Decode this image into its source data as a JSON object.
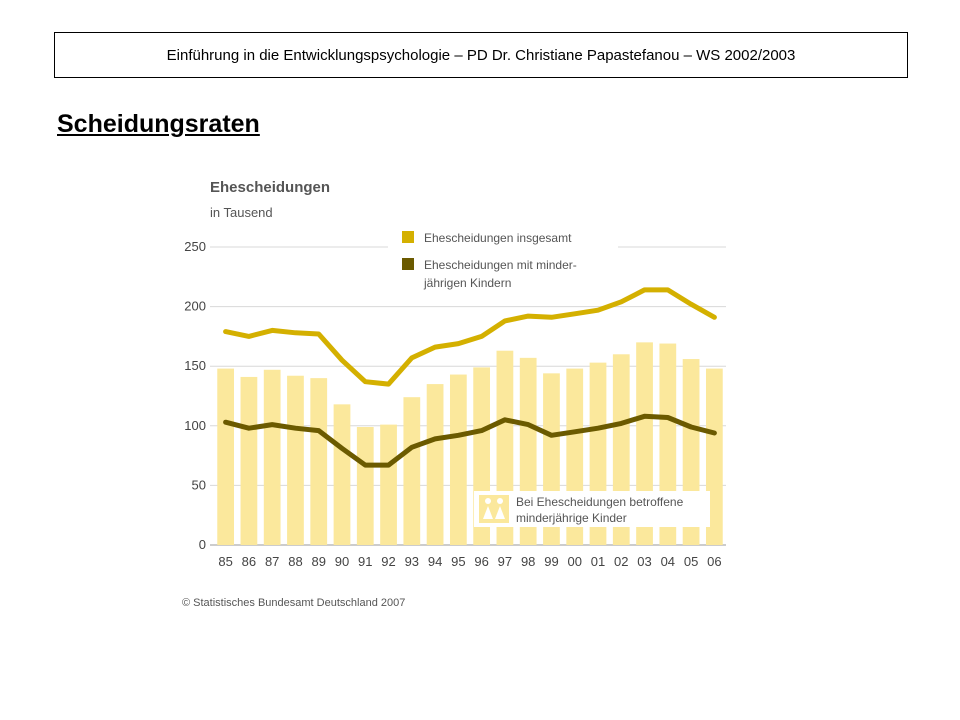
{
  "header": {
    "text": "Einführung in die Entwicklungspsychologie – PD Dr. Christiane Papastefanou – WS 2002/2003"
  },
  "slide": {
    "title": "Scheidungsraten"
  },
  "chart_data": {
    "type": "bar",
    "title": "Ehescheidungen",
    "subtitle": "in Tausend",
    "categories": [
      "85",
      "86",
      "87",
      "88",
      "89",
      "90",
      "91",
      "92",
      "93",
      "94",
      "95",
      "96",
      "97",
      "98",
      "99",
      "00",
      "01",
      "02",
      "03",
      "04",
      "05",
      "06"
    ],
    "ylim": [
      0,
      250
    ],
    "yticks": [
      0,
      50,
      100,
      150,
      200,
      250
    ],
    "grid": true,
    "series": [
      {
        "name": "Ehescheidungen insgesamt",
        "type": "line",
        "color": "#d4b000",
        "values": [
          179,
          175,
          180,
          178,
          177,
          155,
          137,
          135,
          157,
          166,
          169,
          175,
          188,
          192,
          191,
          194,
          197,
          204,
          214,
          214,
          202,
          191
        ]
      },
      {
        "name": "Ehescheidungen mit minder-jährigen Kindern",
        "legend_lines": [
          "Ehescheidungen mit minder-",
          "jährigen Kindern"
        ],
        "type": "line",
        "color": "#6b5a00",
        "values": [
          103,
          98,
          101,
          98,
          96,
          81,
          67,
          67,
          82,
          89,
          92,
          96,
          105,
          101,
          92,
          95,
          98,
          102,
          108,
          107,
          99,
          94
        ]
      },
      {
        "name": "Bei Ehescheidungen betroffene minderjährige Kinder",
        "legend_lines": [
          "Bei Ehescheidungen betroffene",
          "minderjährige Kinder"
        ],
        "type": "bar",
        "color": "#fbe89c",
        "values": [
          148,
          141,
          147,
          142,
          140,
          118,
          99,
          101,
          124,
          135,
          143,
          149,
          163,
          157,
          144,
          148,
          153,
          160,
          170,
          169,
          156,
          148
        ]
      }
    ],
    "source": "© Statistisches Bundesamt Deutschland 2007",
    "legend_position": "top-right / bottom-right"
  }
}
